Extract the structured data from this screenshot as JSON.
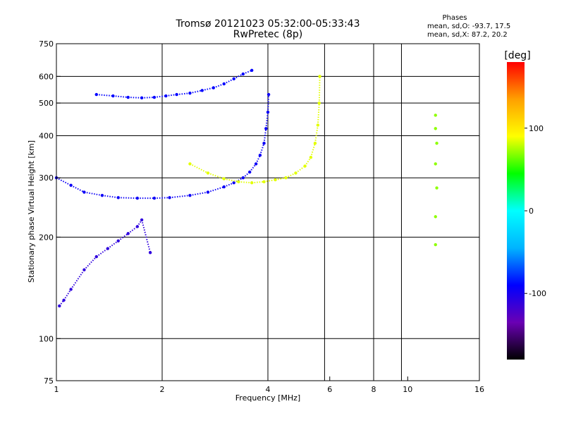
{
  "header": {
    "title": "Tromsø 20121023 05:32:00-05:33:43",
    "subtitle": "RwPretec (8p)",
    "phase_title": "Phases",
    "stat_o": "mean, sd,O: -93.7, 17.5",
    "stat_x": "mean, sd,X:  87.2, 20.2"
  },
  "colorbar": {
    "label": "[deg]",
    "ticks": [
      {
        "value": 100,
        "label": "100"
      },
      {
        "value": 0,
        "label": "0"
      },
      {
        "value": -100,
        "label": "-100"
      }
    ],
    "range": [
      -180,
      180
    ],
    "stops": [
      "#000000",
      "#6a00b4",
      "#0000ff",
      "#00b4ff",
      "#00ffff",
      "#00ff00",
      "#ffff00",
      "#ffa000",
      "#ff0000"
    ]
  },
  "chart_data": {
    "type": "scatter",
    "title": "Tromsø 20121023 05:32:00-05:33:43",
    "subtitle": "RwPretec (8p)",
    "xlabel": "Frequency [MHz]",
    "ylabel": "Stationary phase Virtual Height [km]",
    "xscale": "log",
    "yscale": "log",
    "xlim": [
      1,
      16
    ],
    "ylim": [
      75,
      750
    ],
    "grid": true,
    "xticks": [
      {
        "value": 1,
        "label": "1"
      },
      {
        "value": 2,
        "label": "2"
      },
      {
        "value": 4,
        "label": "4"
      },
      {
        "value": 6,
        "label": "6"
      },
      {
        "value": 8,
        "label": "8"
      },
      {
        "value": 10,
        "label": "10"
      },
      {
        "value": 16,
        "label": "16"
      }
    ],
    "xgrid": [
      2,
      4,
      5.8,
      8,
      9.6
    ],
    "yticks": [
      {
        "value": 75,
        "label": "75"
      },
      {
        "value": 100,
        "label": "100"
      },
      {
        "value": 200,
        "label": "200"
      },
      {
        "value": 300,
        "label": "300"
      },
      {
        "value": 400,
        "label": "400"
      },
      {
        "value": 500,
        "label": "500"
      },
      {
        "value": 600,
        "label": "600"
      },
      {
        "value": 750,
        "label": "750"
      }
    ],
    "ygrid": [
      100,
      200,
      300,
      400,
      500,
      600
    ],
    "color_variable": "Phase [deg]",
    "series": [
      {
        "description": "F-layer O-mode trace (blue)",
        "phase": -95,
        "x": [
          1.0,
          1.1,
          1.2,
          1.35,
          1.5,
          1.7,
          1.9,
          2.1,
          2.4,
          2.7,
          3.0,
          3.2,
          3.4,
          3.55,
          3.7,
          3.8,
          3.9,
          3.95,
          4.0,
          4.02
        ],
        "y": [
          300,
          285,
          272,
          266,
          262,
          261,
          261,
          262,
          266,
          272,
          282,
          290,
          300,
          312,
          330,
          350,
          380,
          420,
          470,
          530
        ]
      },
      {
        "description": "F-layer X-mode trace (yellow)",
        "phase": 85,
        "x": [
          2.4,
          2.7,
          3.0,
          3.3,
          3.6,
          3.9,
          4.2,
          4.5,
          4.8,
          5.1,
          5.3,
          5.45,
          5.55,
          5.6,
          5.62
        ],
        "y": [
          330,
          310,
          298,
          292,
          290,
          292,
          296,
          300,
          310,
          325,
          345,
          380,
          430,
          500,
          600
        ]
      },
      {
        "description": "Upper O-mode echoes",
        "phase": -90,
        "x": [
          1.3,
          1.45,
          1.6,
          1.75,
          1.9,
          2.05,
          2.2,
          2.4,
          2.6,
          2.8,
          3.0,
          3.2,
          3.4,
          3.6
        ],
        "y": [
          530,
          525,
          520,
          518,
          520,
          525,
          530,
          535,
          545,
          555,
          570,
          590,
          610,
          625
        ]
      },
      {
        "description": "Lower spread echoes",
        "phase": -110,
        "x": [
          1.02,
          1.05,
          1.1,
          1.2,
          1.3,
          1.4,
          1.5,
          1.6,
          1.7,
          1.75,
          1.85
        ],
        "y": [
          125,
          130,
          140,
          160,
          175,
          185,
          195,
          205,
          215,
          225,
          180
        ]
      },
      {
        "description": "Scattered echoes near 12 MHz",
        "phase": 70,
        "x": [
          12.0,
          12.0,
          12.1,
          12.0,
          12.1,
          12.0,
          12.0
        ],
        "y": [
          460,
          420,
          380,
          330,
          280,
          230,
          190
        ]
      }
    ]
  }
}
